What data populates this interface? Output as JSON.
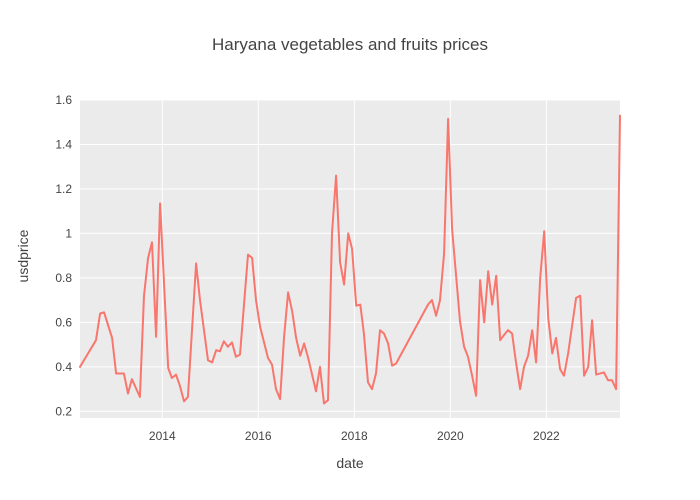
{
  "chart_data": {
    "type": "line",
    "title": "Haryana vegetables and fruits prices",
    "xlabel": "date",
    "ylabel": "usdprice",
    "xlim": [
      "2012-04-15",
      "2023-07-15"
    ],
    "ylim": [
      0.17,
      1.6
    ],
    "yticks": [
      0.2,
      0.4,
      0.6,
      0.8,
      1,
      1.2,
      1.4,
      1.6
    ],
    "ytick_labels": [
      "0.2",
      "0.4",
      "0.6",
      "0.8",
      "1",
      "1.2",
      "1.4",
      "1.6"
    ],
    "xticks": [
      "2014-01-01",
      "2016-01-01",
      "2018-01-01",
      "2020-01-01",
      "2022-01-01"
    ],
    "xtick_labels": [
      "2014",
      "2016",
      "2018",
      "2020",
      "2022"
    ],
    "grid": true,
    "colors": {
      "plot_background": "#ebebeb",
      "grid": "#ffffff",
      "line": "#f8766d"
    },
    "series": [
      {
        "x": [
          "2012-04-15",
          "2012-08-15",
          "2012-09-15",
          "2012-10-15",
          "2012-12-15",
          "2013-01-15",
          "2013-03-15",
          "2013-04-15",
          "2013-05-15",
          "2013-07-15",
          "2013-08-15",
          "2013-09-15",
          "2013-10-15",
          "2013-11-15",
          "2013-12-15",
          "2014-02-15",
          "2014-03-15",
          "2014-04-15",
          "2014-05-15",
          "2014-06-15",
          "2014-07-15",
          "2014-09-15",
          "2014-10-15",
          "2014-12-15",
          "2015-01-15",
          "2015-02-15",
          "2015-03-15",
          "2015-04-15",
          "2015-05-15",
          "2015-06-15",
          "2015-07-15",
          "2015-08-15",
          "2015-10-15",
          "2015-11-15",
          "2015-12-15",
          "2016-01-15",
          "2016-03-15",
          "2016-04-15",
          "2016-05-15",
          "2016-06-15",
          "2016-07-15",
          "2016-08-15",
          "2016-09-15",
          "2016-10-15",
          "2016-11-15",
          "2016-12-15",
          "2017-01-15",
          "2017-03-15",
          "2017-04-15",
          "2017-05-15",
          "2017-06-15",
          "2017-07-15",
          "2017-08-15",
          "2017-09-15",
          "2017-10-15",
          "2017-11-15",
          "2017-12-15",
          "2018-01-15",
          "2018-02-15",
          "2018-03-15",
          "2018-04-15",
          "2018-05-15",
          "2018-06-15",
          "2018-07-15",
          "2018-08-15",
          "2018-09-15",
          "2018-10-15",
          "2018-11-15",
          "2019-07-15",
          "2019-08-15",
          "2019-09-15",
          "2019-10-15",
          "2019-11-15",
          "2019-12-15",
          "2020-01-15",
          "2020-03-15",
          "2020-04-15",
          "2020-05-15",
          "2020-06-15",
          "2020-07-15",
          "2020-08-15",
          "2020-09-15",
          "2020-10-15",
          "2020-11-15",
          "2020-12-15",
          "2021-01-15",
          "2021-02-15",
          "2021-03-15",
          "2021-04-15",
          "2021-05-15",
          "2021-06-15",
          "2021-07-15",
          "2021-08-15",
          "2021-09-15",
          "2021-10-15",
          "2021-11-15",
          "2021-12-15",
          "2022-01-15",
          "2022-02-15",
          "2022-03-15",
          "2022-04-15",
          "2022-05-15",
          "2022-06-15",
          "2022-08-15",
          "2022-09-15",
          "2022-10-15",
          "2022-11-15",
          "2022-12-15",
          "2023-01-15",
          "2023-03-15",
          "2023-04-15",
          "2023-05-15",
          "2023-06-15",
          "2023-07-15"
        ],
        "y": [
          0.4,
          0.52,
          0.64,
          0.645,
          0.53,
          0.37,
          0.37,
          0.28,
          0.345,
          0.265,
          0.72,
          0.89,
          0.96,
          0.535,
          1.135,
          0.395,
          0.35,
          0.365,
          0.315,
          0.245,
          0.265,
          0.865,
          0.7,
          0.43,
          0.42,
          0.475,
          0.47,
          0.515,
          0.49,
          0.51,
          0.445,
          0.455,
          0.905,
          0.89,
          0.7,
          0.58,
          0.44,
          0.41,
          0.3,
          0.255,
          0.53,
          0.735,
          0.65,
          0.53,
          0.45,
          0.505,
          0.44,
          0.29,
          0.4,
          0.235,
          0.25,
          1.0,
          1.26,
          0.87,
          0.77,
          1.0,
          0.93,
          0.675,
          0.68,
          0.55,
          0.33,
          0.3,
          0.37,
          0.565,
          0.55,
          0.505,
          0.405,
          0.415,
          0.68,
          0.7,
          0.63,
          0.7,
          0.91,
          1.515,
          1.02,
          0.605,
          0.49,
          0.445,
          0.36,
          0.27,
          0.79,
          0.6,
          0.83,
          0.68,
          0.81,
          0.52,
          0.545,
          0.565,
          0.55,
          0.42,
          0.3,
          0.4,
          0.45,
          0.565,
          0.42,
          0.8,
          1.01,
          0.62,
          0.46,
          0.53,
          0.39,
          0.36,
          0.46,
          0.71,
          0.72,
          0.36,
          0.4,
          0.61,
          0.365,
          0.375,
          0.34,
          0.34,
          0.3,
          1.53
        ]
      }
    ]
  }
}
